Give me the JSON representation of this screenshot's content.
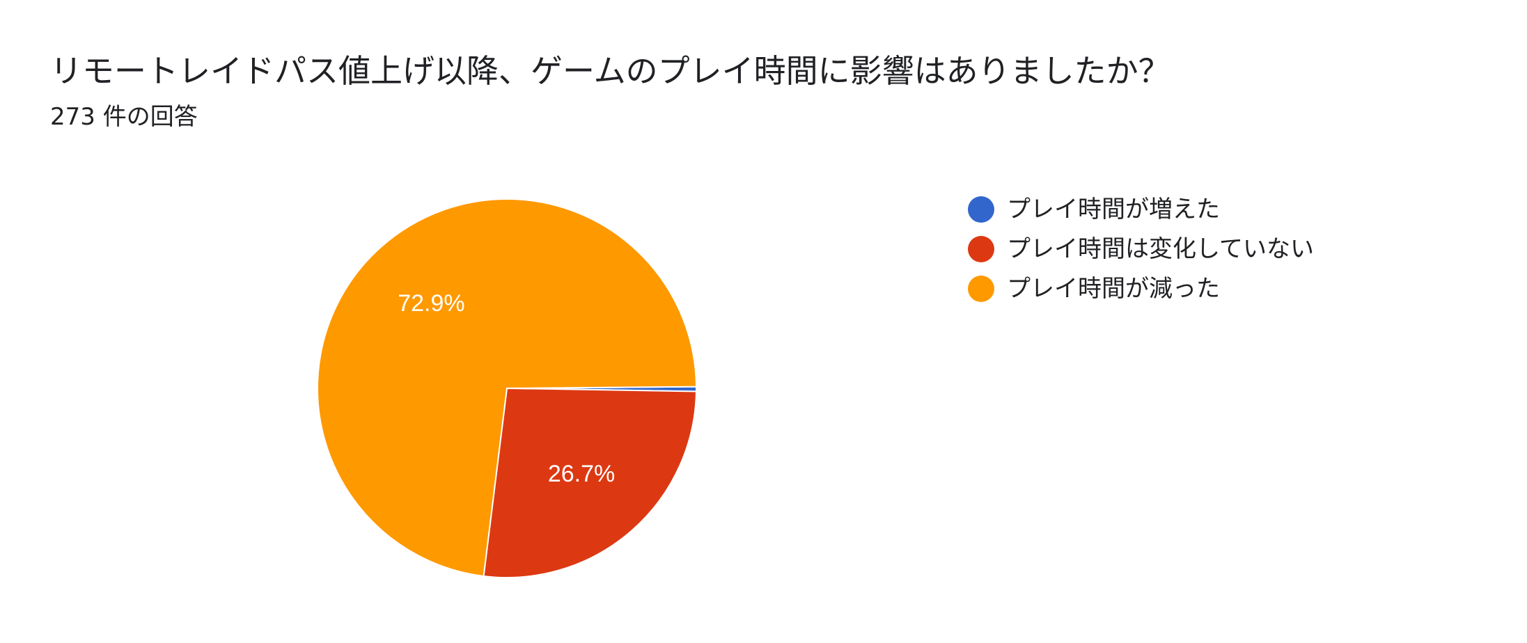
{
  "header": {
    "title": "リモートレイドパス値上げ以降、ゲームのプレイ時間に影響はありましたか？",
    "subtitle": "273 件の回答"
  },
  "chart_data": {
    "type": "pie",
    "title": "リモートレイドパス値上げ以降、ゲームのプレイ時間に影響はありましたか？",
    "subtitle": "273 件の回答",
    "total_responses": 273,
    "categories": [
      "プレイ時間が増えた",
      "プレイ時間は変化していない",
      "プレイ時間が減った"
    ],
    "values": [
      0.4,
      26.7,
      72.9
    ],
    "data_labels": [
      "",
      "26.7%",
      "72.9%"
    ],
    "colors": [
      "#3366CC",
      "#DC3912",
      "#FF9900"
    ],
    "legend_position": "right"
  }
}
